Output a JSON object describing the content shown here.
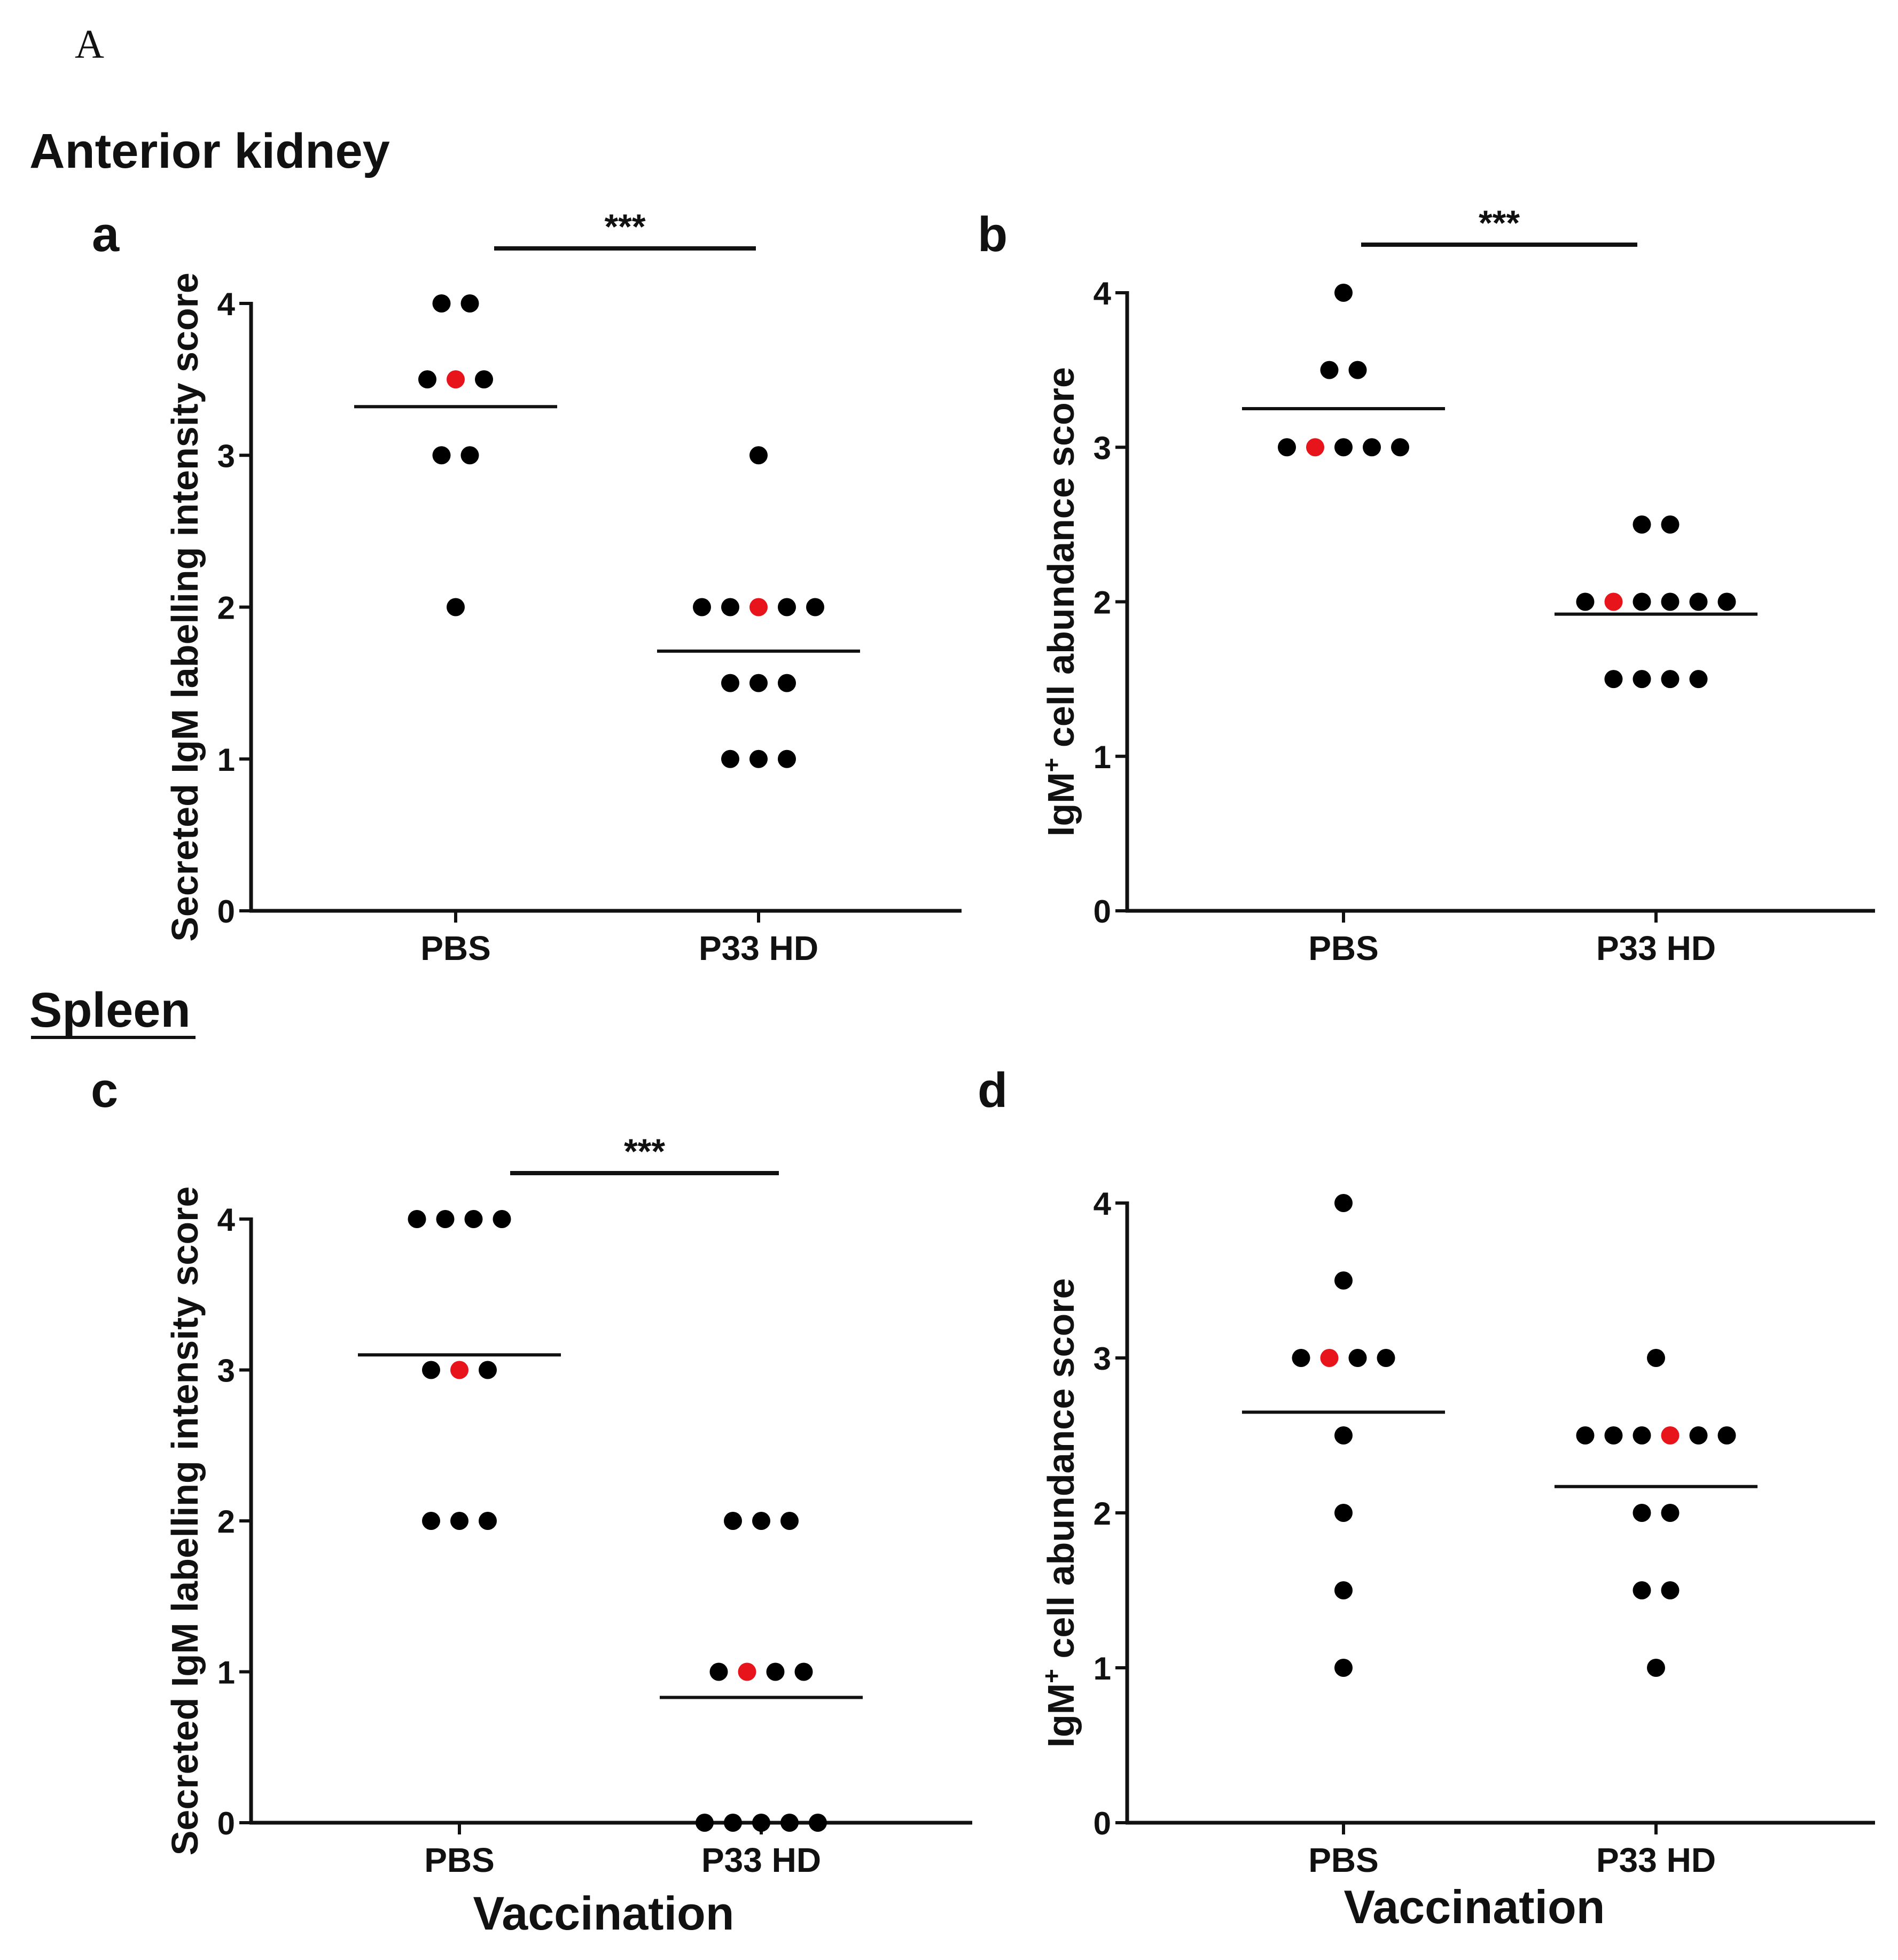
{
  "figure": {
    "figure_label": "A",
    "section_top": "Anterior kidney",
    "section_bottom": "Spleen"
  },
  "chart_data": [
    {
      "id": "a",
      "panel_label": "a",
      "type": "scatter",
      "ylabel": "Secreted IgM labelling intensity score",
      "xlabel": "",
      "categories": [
        "PBS",
        "P33 HD"
      ],
      "ylim": [
        0,
        4
      ],
      "yticks": [
        "0",
        "1",
        "2",
        "3",
        "4"
      ],
      "significance": "***",
      "groups": [
        {
          "category": "PBS",
          "mean": 3.32,
          "values": [
            4,
            4,
            3.5,
            3.5,
            3.5,
            3,
            3,
            2
          ],
          "highlight_index": 3
        },
        {
          "category": "P33 HD",
          "mean": 1.71,
          "values": [
            3,
            2,
            2,
            2,
            2,
            2,
            1.5,
            1.5,
            1.5,
            1,
            1,
            1
          ],
          "highlight_index": 3
        }
      ]
    },
    {
      "id": "b",
      "panel_label": "b",
      "type": "scatter",
      "ylabel": "IgM+ cell abundance score",
      "ylabel_main": "IgM",
      "ylabel_sup": "+",
      "ylabel_rest": " cell abundance score",
      "xlabel": "",
      "categories": [
        "PBS",
        "P33 HD"
      ],
      "ylim": [
        0,
        4
      ],
      "yticks": [
        "0",
        "1",
        "2",
        "3",
        "4"
      ],
      "significance": "***",
      "groups": [
        {
          "category": "PBS",
          "mean": 3.25,
          "values": [
            4,
            3.5,
            3.5,
            3,
            3,
            3,
            3,
            3
          ],
          "highlight_index": 4
        },
        {
          "category": "P33 HD",
          "mean": 1.92,
          "values": [
            2.5,
            2.5,
            2,
            2,
            2,
            2,
            2,
            2,
            1.5,
            1.5,
            1.5,
            1.5
          ],
          "highlight_index": 3
        }
      ]
    },
    {
      "id": "c",
      "panel_label": "c",
      "type": "scatter",
      "ylabel": "Secreted IgM  labelling intensity score",
      "xlabel": "Vaccination",
      "categories": [
        "PBS",
        "P33 HD"
      ],
      "ylim": [
        0,
        4
      ],
      "yticks": [
        "0",
        "1",
        "2",
        "3",
        "4"
      ],
      "significance": "***",
      "groups": [
        {
          "category": "PBS",
          "mean": 3.1,
          "values": [
            4,
            4,
            4,
            4,
            3,
            3,
            3,
            2,
            2,
            2
          ],
          "highlight_index": 5
        },
        {
          "category": "P33 HD",
          "mean": 0.83,
          "values": [
            2,
            2,
            2,
            1,
            1,
            1,
            1,
            0,
            0,
            0,
            0,
            0
          ],
          "highlight_index": 4
        }
      ]
    },
    {
      "id": "d",
      "panel_label": "d",
      "type": "scatter",
      "ylabel": "IgM+ cell abundance score",
      "ylabel_main": "IgM",
      "ylabel_sup": "+",
      "ylabel_rest": " cell abundance score",
      "xlabel": "Vaccination",
      "categories": [
        "PBS",
        "P33 HD"
      ],
      "ylim": [
        0,
        4
      ],
      "yticks": [
        "0",
        "1",
        "2",
        "3",
        "4"
      ],
      "significance": "",
      "groups": [
        {
          "category": "PBS",
          "mean": 2.65,
          "values": [
            4,
            3.5,
            3,
            3,
            3,
            3,
            2.5,
            2,
            1.5,
            1
          ],
          "highlight_index": 3
        },
        {
          "category": "P33 HD",
          "mean": 2.17,
          "values": [
            3,
            2.5,
            2.5,
            2.5,
            2.5,
            2.5,
            2.5,
            2,
            2,
            1.5,
            1.5,
            1
          ],
          "highlight_index": 4
        }
      ]
    }
  ],
  "colors": {
    "point": "#000000",
    "highlight": "#e8141c",
    "axis": "#111111"
  }
}
